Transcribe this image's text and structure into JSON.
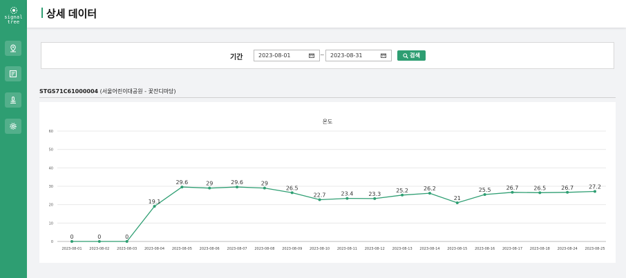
{
  "brand": {
    "line1": "signal",
    "line2": "tree"
  },
  "sidebar": {
    "items": [
      {
        "icon": "location-pin-icon"
      },
      {
        "icon": "document-list-icon"
      },
      {
        "icon": "sensor-icon"
      },
      {
        "icon": "gear-icon"
      }
    ]
  },
  "header": {
    "title": "상세 데이터"
  },
  "search": {
    "period_label": "기간",
    "start_date": "2023-08-01",
    "end_date": "2023-08-31",
    "separator": "~",
    "button_label": "검색"
  },
  "station": {
    "code": "STGS71C61000004",
    "name": "(서울어린이대공원 - 꽃잔디마당)"
  },
  "colors": {
    "accent": "#2e9e72",
    "line": "#2e9e72"
  },
  "chart_data": {
    "type": "line",
    "title": "온도",
    "categories": [
      "2023-08-01",
      "2023-08-02",
      "2023-08-03",
      "2023-08-04",
      "2023-08-05",
      "2023-08-06",
      "2023-08-07",
      "2023-08-08",
      "2023-08-09",
      "2023-08-10",
      "2023-08-11",
      "2023-08-12",
      "2023-08-13",
      "2023-08-14",
      "2023-08-15",
      "2023-08-16",
      "2023-08-17",
      "2023-08-18",
      "2023-08-24",
      "2023-08-25"
    ],
    "values": [
      0,
      0,
      0,
      19.1,
      29.6,
      29,
      29.6,
      29,
      26.5,
      22.7,
      23.4,
      23.3,
      25.2,
      26.2,
      21,
      25.5,
      26.7,
      26.5,
      26.7,
      27.2
    ],
    "yticks": [
      0,
      10,
      20,
      30,
      40,
      50,
      60
    ],
    "ylim": [
      0,
      60
    ],
    "grid": true
  }
}
